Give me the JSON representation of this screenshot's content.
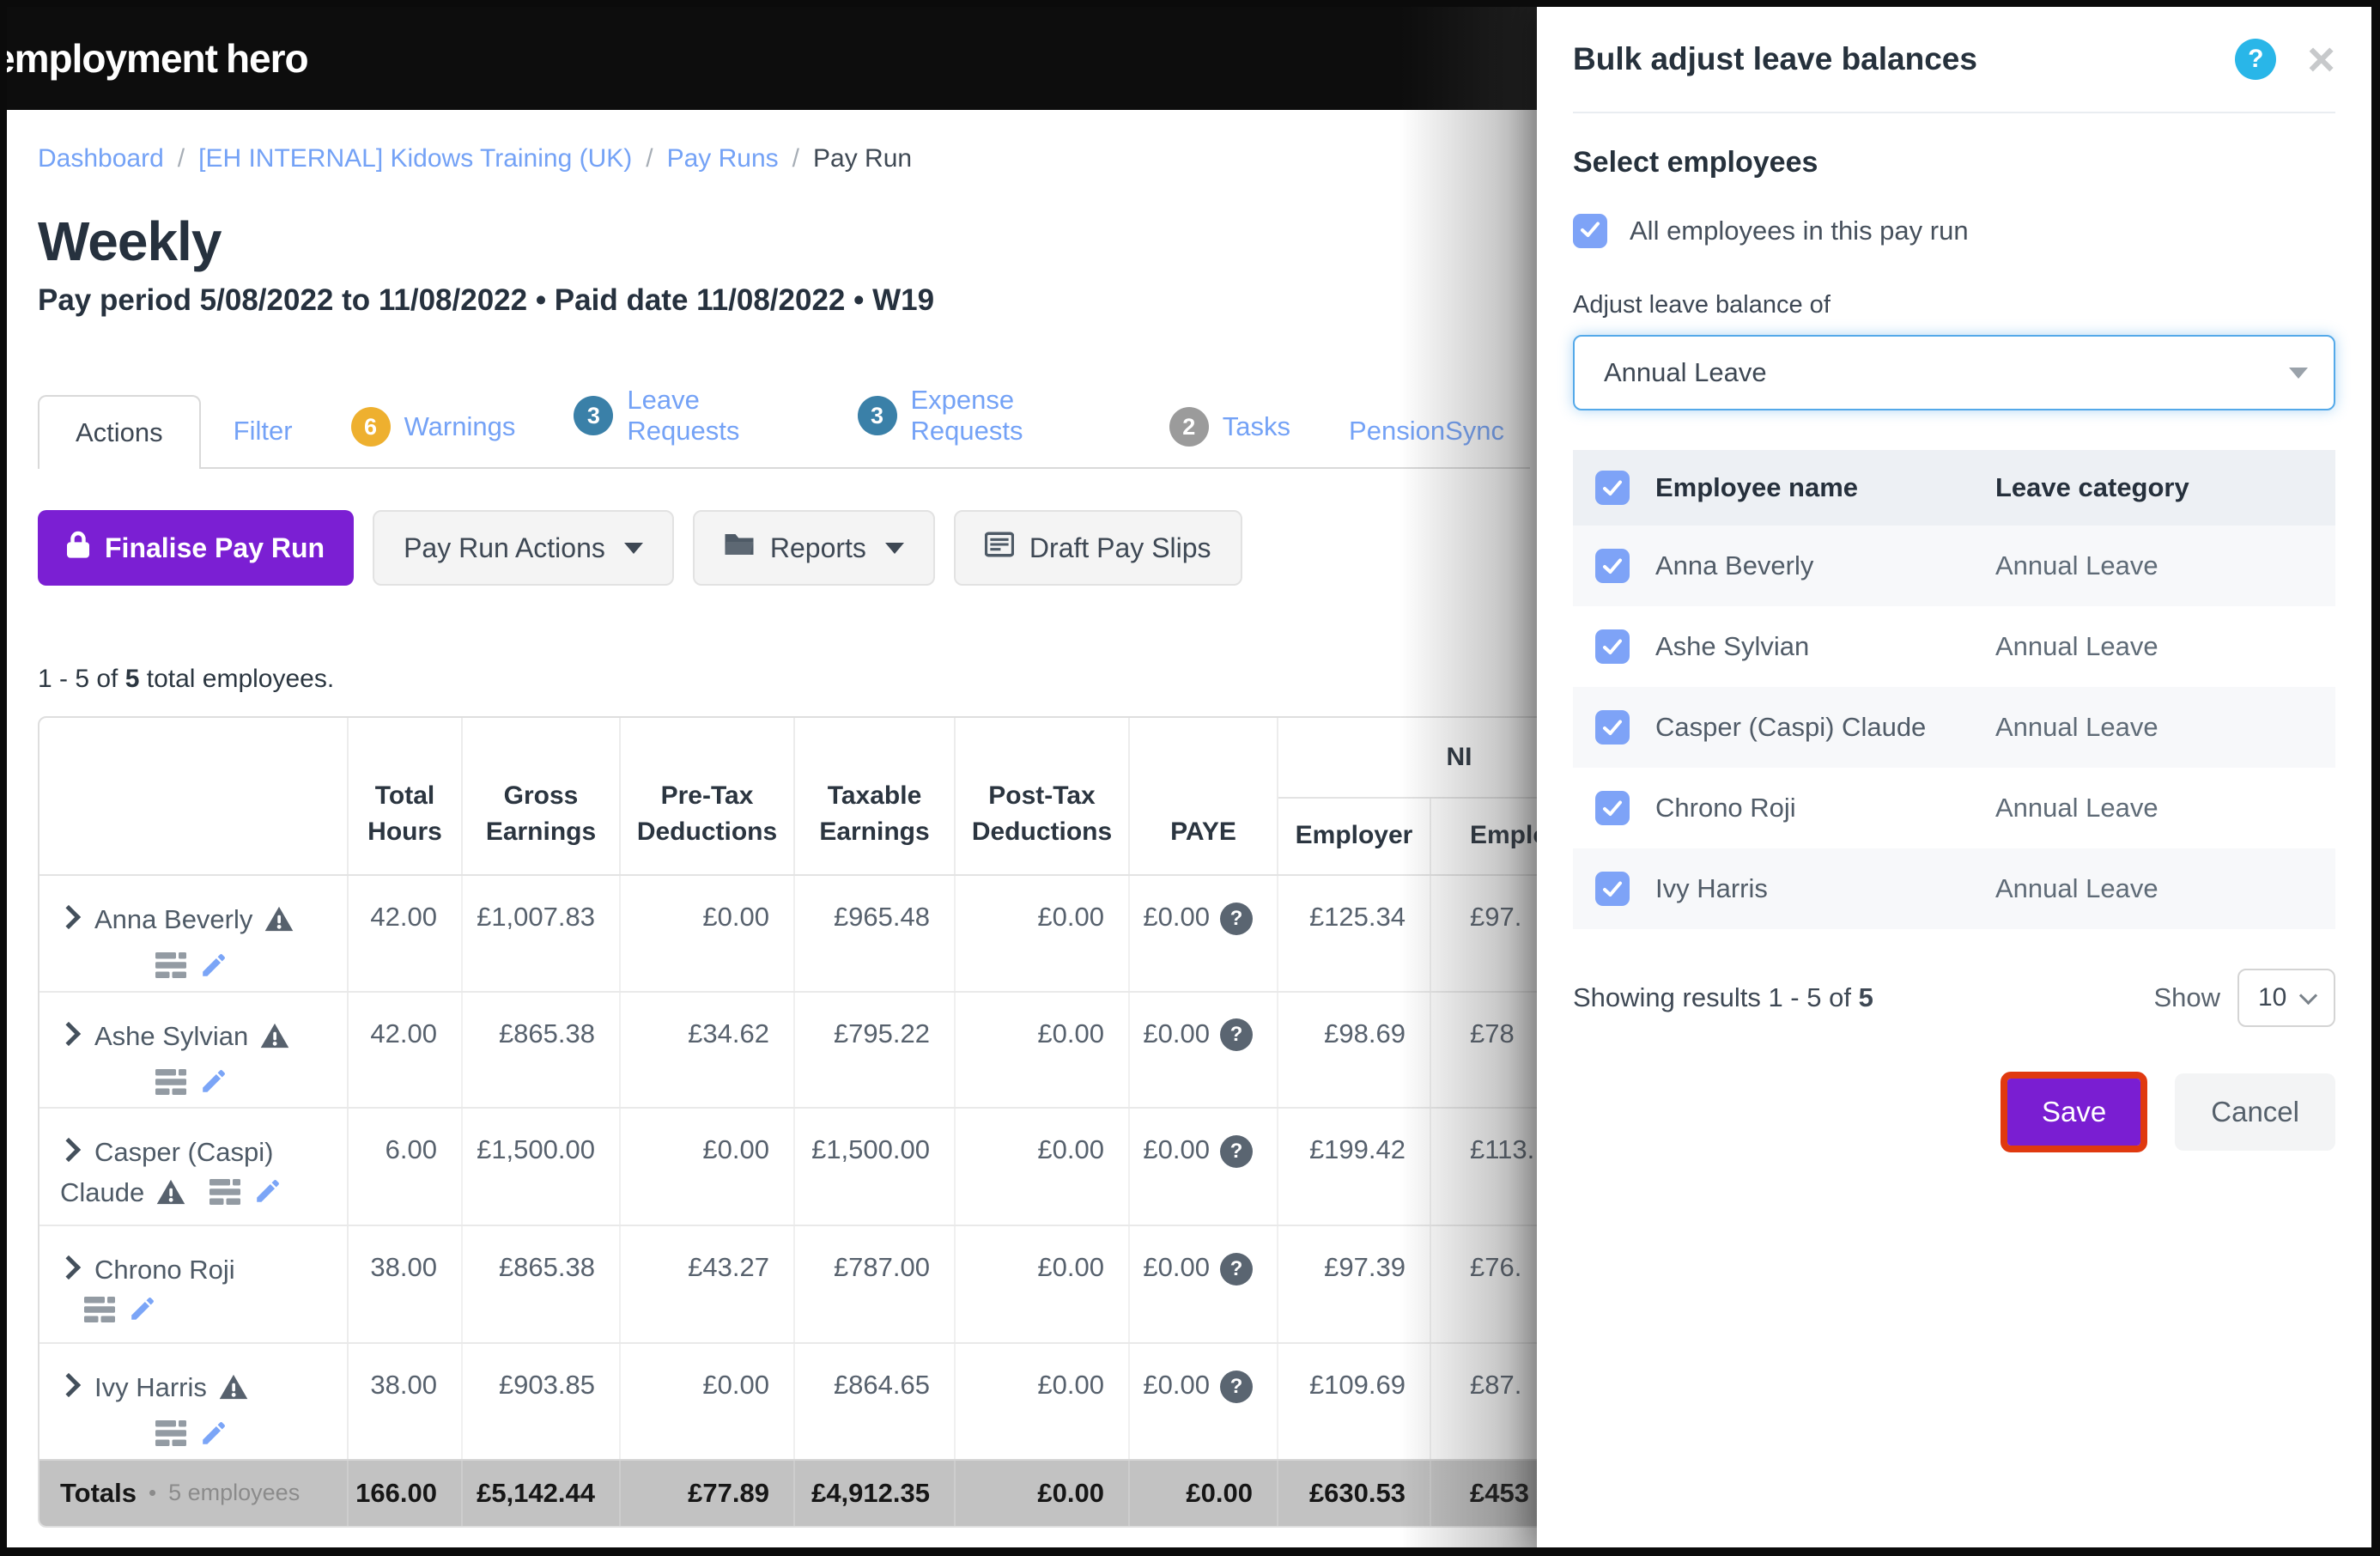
{
  "colors": {
    "accent_purple": "#7b1fd3",
    "link_blue": "#74a2f6",
    "checkbox_blue": "#7ea3f7",
    "help_cyan": "#29b6e8",
    "highlight_red": "#e0390f",
    "warning_badge": "#eeb02f",
    "info_badge": "#3a80a8",
    "neutral_badge": "#9b9b9b",
    "totals_bg": "#c2c2c2"
  },
  "navbar": {
    "logo_left": "employment",
    "logo_right": "hero"
  },
  "breadcrumb": {
    "links": [
      "Dashboard",
      "[EH INTERNAL] Kidows Training (UK)",
      "Pay Runs"
    ],
    "current": "Pay Run",
    "separator": "/"
  },
  "page": {
    "title": "Weekly",
    "subtitle": "Pay period 5/08/2022 to 11/08/2022 • Paid date 11/08/2022 • W19"
  },
  "tabs": [
    {
      "label": "Actions",
      "active": true,
      "badge": null,
      "badge_color": null
    },
    {
      "label": "Filter",
      "active": false,
      "badge": null,
      "badge_color": null
    },
    {
      "label": "Warnings",
      "active": false,
      "badge": "6",
      "badge_color": "#eeb02f"
    },
    {
      "label": "Leave Requests",
      "active": false,
      "badge": "3",
      "badge_color": "#3a80a8"
    },
    {
      "label": "Expense Requests",
      "active": false,
      "badge": "3",
      "badge_color": "#3a80a8"
    },
    {
      "label": "Tasks",
      "active": false,
      "badge": "2",
      "badge_color": "#9b9b9b"
    },
    {
      "label": "PensionSync",
      "active": false,
      "badge": null,
      "badge_color": null
    }
  ],
  "toolbar": {
    "finalise": "Finalise Pay Run",
    "pay_run_actions": "Pay Run Actions",
    "reports": "Reports",
    "draft_pay_slips": "Draft Pay Slips"
  },
  "summary": {
    "prefix": "1 - 5 of ",
    "count": "5",
    "suffix": " total employees."
  },
  "pay_table": {
    "columns": [
      "",
      "Total Hours",
      "Gross Earnings",
      "Pre-Tax Deductions",
      "Taxable Earnings",
      "Post-Tax Deductions",
      "PAYE"
    ],
    "ni_group": {
      "label": "NI",
      "sub_employer": "Employer",
      "sub_employee": "Employee"
    },
    "paye_badge": "?",
    "rows": [
      {
        "name": "Anna Beverly",
        "warning": true,
        "icons_inline": false,
        "values": [
          "42.00",
          "£1,007.83",
          "£0.00",
          "£965.48",
          "£0.00",
          "£0.00",
          "£125.34",
          "£97."
        ]
      },
      {
        "name": "Ashe Sylvian",
        "warning": true,
        "icons_inline": false,
        "values": [
          "42.00",
          "£865.38",
          "£34.62",
          "£795.22",
          "£0.00",
          "£0.00",
          "£98.69",
          "£78"
        ]
      },
      {
        "name": "Casper (Caspi) Claude",
        "warning": true,
        "icons_inline": true,
        "values": [
          "6.00",
          "£1,500.00",
          "£0.00",
          "£1,500.00",
          "£0.00",
          "£0.00",
          "£199.42",
          "£113."
        ]
      },
      {
        "name": "Chrono Roji",
        "warning": false,
        "icons_inline": true,
        "values": [
          "38.00",
          "£865.38",
          "£43.27",
          "£787.00",
          "£0.00",
          "£0.00",
          "£97.39",
          "£76."
        ]
      },
      {
        "name": "Ivy Harris",
        "warning": true,
        "icons_inline": false,
        "values": [
          "38.00",
          "£903.85",
          "£0.00",
          "£864.65",
          "£0.00",
          "£0.00",
          "£109.69",
          "£87."
        ]
      }
    ],
    "totals": {
      "label": "Totals",
      "dot": "•",
      "sub": "5 employees",
      "values": [
        "166.00",
        "£5,142.44",
        "£77.89",
        "£4,912.35",
        "£0.00",
        "£0.00",
        "£630.53",
        "£453"
      ]
    }
  },
  "modal": {
    "title": "Bulk adjust leave balances",
    "help_glyph": "?",
    "close_glyph": "×",
    "select_employees_heading": "Select employees",
    "all_employees_label": "All employees in this pay run",
    "adjust_label": "Adjust leave balance of",
    "leave_category_value": "Annual Leave",
    "table": {
      "name_header": "Employee name",
      "category_header": "Leave category",
      "rows": [
        {
          "name": "Anna Beverly",
          "category": "Annual Leave",
          "checked": true
        },
        {
          "name": "Ashe Sylvian",
          "category": "Annual Leave",
          "checked": true
        },
        {
          "name": "Casper (Caspi) Claude",
          "category": "Annual Leave",
          "checked": true
        },
        {
          "name": "Chrono Roji",
          "category": "Annual Leave",
          "checked": true
        },
        {
          "name": "Ivy Harris",
          "category": "Annual Leave",
          "checked": true
        }
      ]
    },
    "results": {
      "prefix": "Showing results 1 - 5 of ",
      "count": "5"
    },
    "show_label": "Show",
    "page_size": "10",
    "save": "Save",
    "cancel": "Cancel"
  }
}
